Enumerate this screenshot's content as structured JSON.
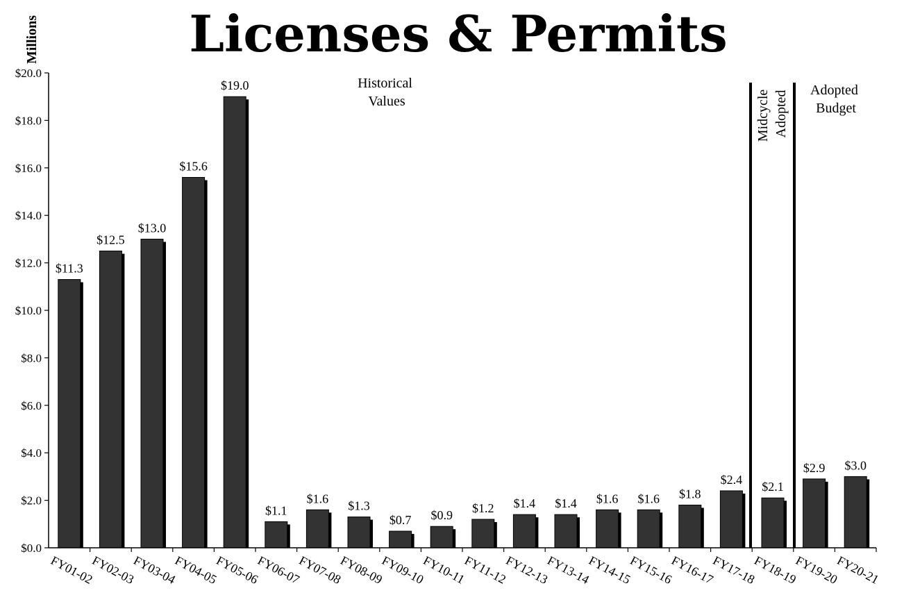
{
  "chart_data": {
    "type": "bar",
    "title": "Licenses & Permits",
    "ylabel": "Millions",
    "ylim": [
      0,
      20
    ],
    "yticks": [
      "$0.0",
      "$2.0",
      "$4.0",
      "$6.0",
      "$8.0",
      "$10.0",
      "$12.0",
      "$14.0",
      "$16.0",
      "$18.0",
      "$20.0"
    ],
    "categories": [
      "FY01-02",
      "FY02-03",
      "FY03-04",
      "FY04-05",
      "FY05-06",
      "FY06-07",
      "FY07-08",
      "FY08-09",
      "FY09-10",
      "FY10-11",
      "FY11-12",
      "FY12-13",
      "FY13-14",
      "FY14-15",
      "FY15-16",
      "FY16-17",
      "FY17-18",
      "FY18-19",
      "FY19-20",
      "FY20-21"
    ],
    "values": [
      11.3,
      12.5,
      13.0,
      15.6,
      19.0,
      1.1,
      1.6,
      1.3,
      0.7,
      0.9,
      1.2,
      1.4,
      1.4,
      1.6,
      1.6,
      1.8,
      2.4,
      2.1,
      2.9,
      3.0
    ],
    "data_labels": [
      "$11.3",
      "$12.5",
      "$13.0",
      "$15.6",
      "$19.0",
      "$1.1",
      "$1.6",
      "$1.3",
      "$0.7",
      "$0.9",
      "$1.2",
      "$1.4",
      "$1.4",
      "$1.6",
      "$1.6",
      "$1.8",
      "$2.4",
      "$2.1",
      "$2.9",
      "$3.0"
    ],
    "bar_color": "#333333",
    "shadow_color": "#000000",
    "grid": false,
    "annotations": {
      "historical": [
        "Historical",
        "Values"
      ],
      "midcycle": [
        "Midcycle",
        "Adopted"
      ],
      "adopted": [
        "Adopted",
        "Budget"
      ]
    }
  }
}
